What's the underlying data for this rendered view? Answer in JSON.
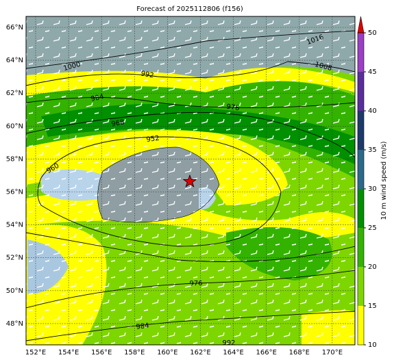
{
  "map": {
    "title": "Forecast of 2025112806 (f156)",
    "lon_ticks": [
      {
        "value": 152,
        "label": "152°E"
      },
      {
        "value": 154,
        "label": "154°E"
      },
      {
        "value": 156,
        "label": "156°E"
      },
      {
        "value": 158,
        "label": "158°E"
      },
      {
        "value": 160,
        "label": "160°E"
      },
      {
        "value": 162,
        "label": "162°E"
      },
      {
        "value": 164,
        "label": "164°E"
      },
      {
        "value": 166,
        "label": "166°E"
      },
      {
        "value": 168,
        "label": "168°E"
      },
      {
        "value": 170,
        "label": "170°E"
      }
    ],
    "lat_ticks": [
      {
        "value": 66,
        "label": "66°N"
      },
      {
        "value": 64,
        "label": "64°N"
      },
      {
        "value": 62,
        "label": "62°N"
      },
      {
        "value": 60,
        "label": "60°N"
      },
      {
        "value": 58,
        "label": "58°N"
      },
      {
        "value": 56,
        "label": "56°N"
      },
      {
        "value": 54,
        "label": "54°N"
      },
      {
        "value": 52,
        "label": "52°N"
      },
      {
        "value": 50,
        "label": "50°N"
      },
      {
        "value": 48,
        "label": "48°N"
      }
    ],
    "isobar_labels": [
      "1016",
      "1000",
      "992",
      "1008",
      "984",
      "976",
      "968",
      "952",
      "960",
      "976",
      "984",
      "992"
    ]
  },
  "colorbar": {
    "label": "10 m wind speed (m/s)",
    "ylim": [
      10,
      50
    ],
    "ticks": [
      10,
      15,
      20,
      25,
      30,
      35,
      40,
      45,
      50
    ],
    "colors": [
      "#ffff00",
      "#7ed600",
      "#33b300",
      "#009000",
      "#2b6a8a",
      "#1c3a6a",
      "#5a2e9a",
      "#9b3fc4"
    ],
    "extend_color": "#e00000"
  }
}
